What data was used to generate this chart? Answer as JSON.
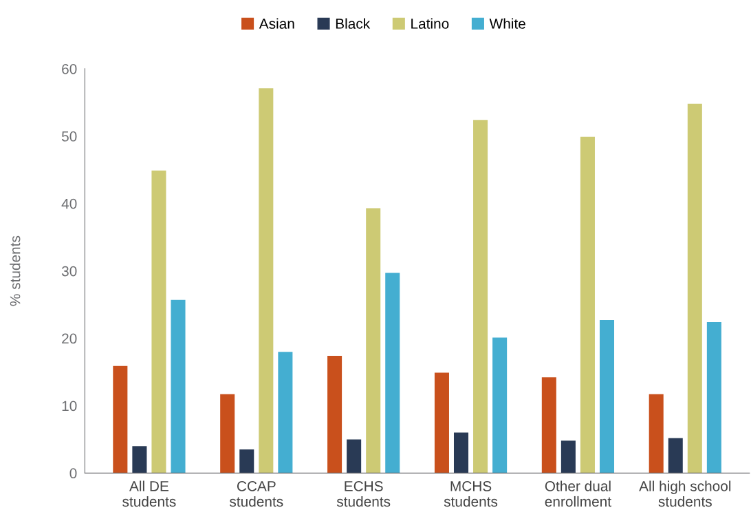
{
  "chart_data": {
    "type": "bar",
    "ylabel": "% students",
    "categories": [
      "All DE\nstudents",
      "CCAP\nstudents",
      "ECHS\nstudents",
      "MCHS\nstudents",
      "Other dual\nenrollment",
      "All high school\nstudents"
    ],
    "series": [
      {
        "name": "Asian",
        "color": "#c9501c",
        "values": [
          15.9,
          11.7,
          17.4,
          14.9,
          14.2,
          11.7
        ]
      },
      {
        "name": "Black",
        "color": "#293a55",
        "values": [
          4.0,
          3.5,
          5.0,
          6.0,
          4.8,
          5.2
        ]
      },
      {
        "name": "Latino",
        "color": "#cdca74",
        "values": [
          44.9,
          57.1,
          39.3,
          52.4,
          49.9,
          54.8
        ]
      },
      {
        "name": "White",
        "color": "#44aed1",
        "values": [
          25.7,
          18.0,
          29.7,
          20.1,
          22.7,
          22.4
        ]
      }
    ],
    "ylim": [
      0,
      60
    ],
    "yticks": [
      0,
      10,
      20,
      30,
      40,
      50,
      60
    ],
    "grid": false,
    "legend": "top"
  }
}
